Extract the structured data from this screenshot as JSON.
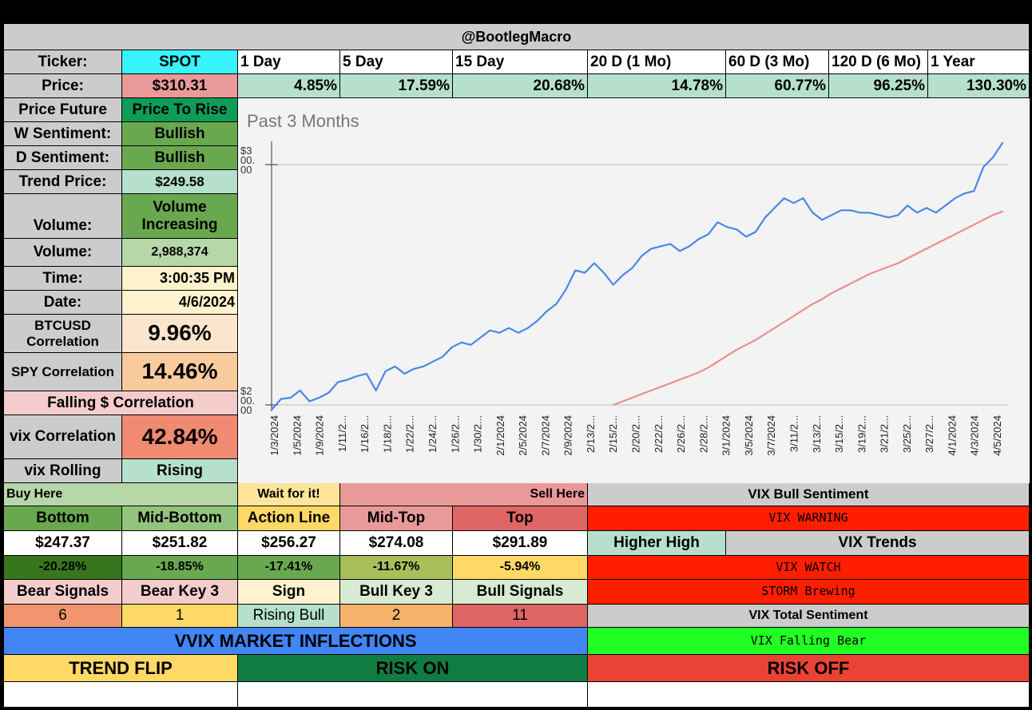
{
  "header": {
    "handle": "@BootlegMacro"
  },
  "ticker_row": {
    "label": "Ticker:",
    "symbol": "SPOT",
    "periods": [
      "1 Day",
      "5 Day",
      "15 Day",
      "20 D (1 Mo)",
      "60 D (3 Mo)",
      "120 D (6 Mo)",
      "1 Year"
    ]
  },
  "price_row": {
    "label": "Price:",
    "price": "$310.31",
    "returns": [
      "4.85%",
      "17.59%",
      "20.68%",
      "14.78%",
      "60.77%",
      "96.25%",
      "130.30%"
    ]
  },
  "left_panel": {
    "price_future": {
      "label": "Price Future",
      "value": "Price To Rise"
    },
    "w_sentiment": {
      "label": "W Sentiment:",
      "value": "Bullish"
    },
    "d_sentiment": {
      "label": "D Sentiment:",
      "value": "Bullish"
    },
    "trend_price": {
      "label": "Trend Price:",
      "value": "$249.58"
    },
    "volume_status": {
      "label": "Volume:",
      "value": "Volume Increasing"
    },
    "volume": {
      "label": "Volume:",
      "value": "2,988,374"
    },
    "time": {
      "label": "Time:",
      "value": "3:00:35 PM"
    },
    "date": {
      "label": "Date:",
      "value": "4/6/2024"
    },
    "btc_corr": {
      "label": "BTCUSD Correlation",
      "value": "9.96%"
    },
    "spy_corr": {
      "label": "SPY Correlation",
      "value": "14.46%"
    },
    "falling_dollar": {
      "label": "Falling $ Correlation"
    },
    "vix_corr": {
      "label": "vix Correlation",
      "value": "42.84%"
    },
    "vix_rolling": {
      "label": "vix Rolling",
      "value": "Rising"
    }
  },
  "levels": {
    "buy_here": "Buy Here",
    "wait": "Wait for it!",
    "sell_here": "Sell Here",
    "headers": [
      "Bottom",
      "Mid-Bottom",
      "Action Line",
      "Mid-Top",
      "Top"
    ],
    "prices": [
      "$247.37",
      "$251.82",
      "$256.27",
      "$274.08",
      "$291.89"
    ],
    "pcts": [
      "-20.28%",
      "-18.85%",
      "-17.41%",
      "-11.67%",
      "-5.94%"
    ],
    "signal_headers": [
      "Bear Signals",
      "Bear Key 3",
      "Sign",
      "Bull Key 3",
      "Bull Signals"
    ],
    "signal_values": [
      "6",
      "1",
      "Rising Bull",
      "2",
      "11"
    ]
  },
  "vix_panel": {
    "bull_sentiment": "VIX Bull Sentiment",
    "warning": "VIX WARNING",
    "higher_high": "Higher High",
    "trends": "VIX Trends",
    "watch": "VIX WATCH",
    "storm": "STORM Brewing",
    "total_sentiment": "VIX Total Sentiment",
    "falling_bear": "VIX Falling Bear"
  },
  "bottom": {
    "vvix": "VVIX MARKET INFLECTIONS",
    "trend_flip": "TREND FLIP",
    "risk_on": "RISK ON",
    "risk_off": "RISK OFF"
  },
  "colors": {
    "price_line": "#4a86e8",
    "trend_line": "#ea8f8f",
    "vvix_bar": "#4285f4",
    "risk_on": "#0e7d3f",
    "risk_off": "#ea4335",
    "trend_flip": "#ffd966",
    "vix_red": "#ff1f00"
  },
  "chart_data": {
    "type": "line",
    "title": "Past 3 Months",
    "y_tick_labels": [
      "$3\n00.\n00",
      "$2\n00.\n00"
    ],
    "ylim": [
      198,
      312
    ],
    "x_tick_labels": [
      "1/3/2024",
      "1/5/2024",
      "1/9/2024",
      "1/11/2...",
      "1/16/2...",
      "1/18/2...",
      "1/22/2...",
      "1/24/2...",
      "1/26/2...",
      "1/30/2...",
      "2/1/2024",
      "2/5/2024",
      "2/7/2024",
      "2/9/2024",
      "2/13/2...",
      "2/15/2...",
      "2/20/2...",
      "2/22/2...",
      "2/26/2...",
      "2/28/2...",
      "3/1/2024",
      "3/5/2024",
      "3/7/2024",
      "3/11/2...",
      "3/13/2...",
      "3/15/2...",
      "3/19/2...",
      "3/21/2...",
      "3/25/2...",
      "3/27/2...",
      "4/1/2024",
      "4/3/2024",
      "4/5/2024"
    ],
    "series": [
      {
        "values": [
          198,
          202.5,
          203,
          206,
          201.5,
          203,
          205,
          209.5,
          210.5,
          212,
          213,
          206,
          214,
          216,
          213,
          215,
          216,
          218,
          220,
          224,
          226,
          225,
          228,
          231,
          230,
          232,
          230,
          232,
          235,
          239,
          242,
          248,
          256,
          255,
          259,
          255,
          250,
          254,
          257,
          262,
          265,
          266,
          267,
          264,
          266,
          269,
          271,
          276,
          274,
          273,
          270,
          272,
          278,
          282,
          286,
          284,
          286,
          280,
          277,
          279,
          281,
          281,
          280,
          280,
          279,
          278,
          279,
          283,
          280,
          282,
          280,
          283,
          286,
          288,
          289,
          299,
          303,
          309
        ]
      },
      {
        "values": [
          null,
          null,
          null,
          null,
          null,
          null,
          null,
          null,
          null,
          null,
          null,
          null,
          null,
          null,
          null,
          null,
          null,
          null,
          null,
          null,
          null,
          null,
          null,
          null,
          null,
          null,
          null,
          null,
          null,
          null,
          null,
          null,
          null,
          null,
          null,
          null,
          200,
          201.5,
          203,
          204.5,
          206,
          207.5,
          209,
          210.5,
          212,
          213.5,
          215.5,
          218,
          220.5,
          223,
          225,
          227,
          229.5,
          232,
          234.5,
          237,
          239.5,
          242,
          244,
          246.5,
          248.5,
          250.5,
          252.5,
          254.5,
          256,
          257.5,
          259,
          261,
          263,
          265,
          267,
          269,
          271,
          273,
          275,
          277,
          279,
          280.5
        ]
      }
    ]
  }
}
